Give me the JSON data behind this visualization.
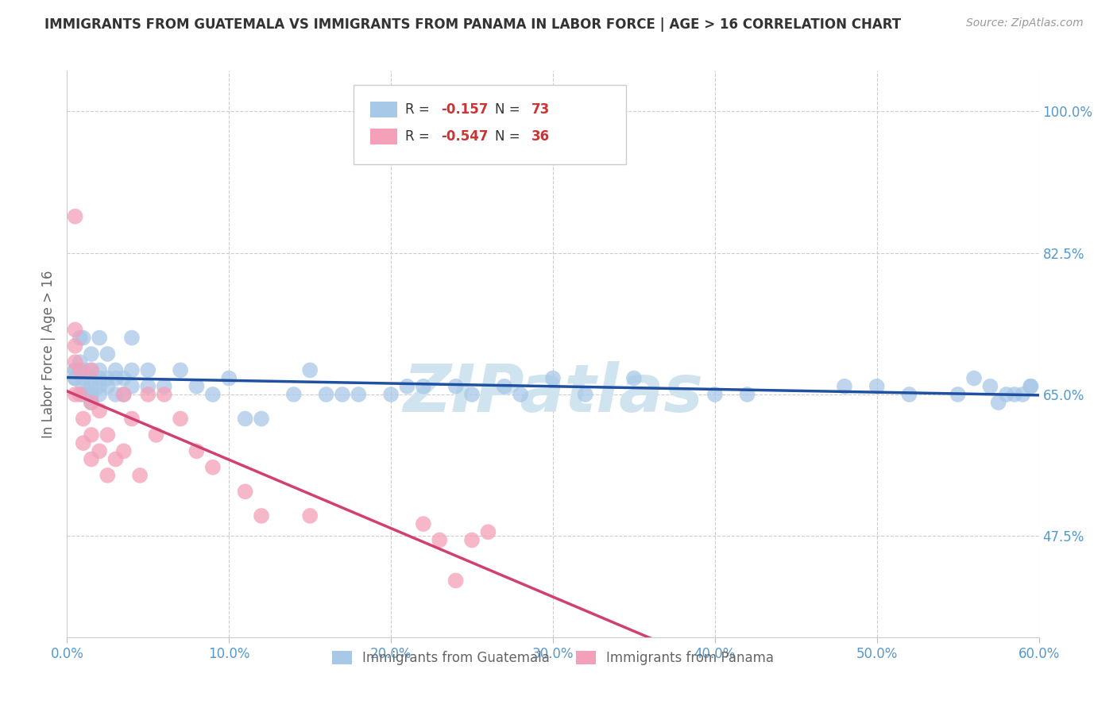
{
  "title": "IMMIGRANTS FROM GUATEMALA VS IMMIGRANTS FROM PANAMA IN LABOR FORCE | AGE > 16 CORRELATION CHART",
  "source": "Source: ZipAtlas.com",
  "xlabel_vals": [
    0,
    10,
    20,
    30,
    40,
    50,
    60
  ],
  "ylabel_vals": [
    47.5,
    65.0,
    82.5,
    100.0
  ],
  "xlim": [
    0,
    60
  ],
  "ylim": [
    35,
    105
  ],
  "ylabel": "In Labor Force | Age > 16",
  "legend_label1": "Immigrants from Guatemala",
  "legend_label2": "Immigrants from Panama",
  "R1": "-0.157",
  "N1": "73",
  "R2": "-0.547",
  "N2": "36",
  "blue_color": "#a8c8e8",
  "pink_color": "#f4a0b8",
  "blue_line_color": "#2050a0",
  "pink_line_color": "#d04070",
  "title_color": "#333333",
  "source_color": "#999999",
  "axis_label_color": "#5599cc",
  "watermark_color": "#d0e4f0",
  "grid_color": "#cccccc",
  "background_color": "#ffffff",
  "guatemala_x": [
    0.5,
    0.5,
    0.5,
    0.5,
    0.8,
    0.8,
    0.8,
    1.0,
    1.0,
    1.0,
    1.0,
    1.0,
    1.5,
    1.5,
    1.5,
    1.5,
    1.5,
    1.5,
    1.5,
    2.0,
    2.0,
    2.0,
    2.0,
    2.0,
    2.5,
    2.5,
    2.5,
    3.0,
    3.0,
    3.0,
    3.5,
    3.5,
    4.0,
    4.0,
    4.0,
    5.0,
    5.0,
    6.0,
    7.0,
    8.0,
    9.0,
    10.0,
    11.0,
    12.0,
    14.0,
    15.0,
    16.0,
    17.0,
    18.0,
    20.0,
    21.0,
    22.0,
    24.0,
    25.0,
    27.0,
    28.0,
    30.0,
    32.0,
    35.0,
    40.0,
    42.0,
    48.0,
    50.0,
    52.0,
    55.0,
    56.0,
    57.0,
    58.0,
    59.0,
    59.5,
    59.5,
    58.5,
    57.5
  ],
  "guatemala_y": [
    67,
    67,
    68,
    68,
    68,
    69,
    72,
    65,
    66,
    67,
    68,
    72,
    64,
    65,
    65,
    66,
    67,
    68,
    70,
    65,
    66,
    67,
    68,
    72,
    66,
    67,
    70,
    65,
    67,
    68,
    65,
    67,
    66,
    68,
    72,
    66,
    68,
    66,
    68,
    66,
    65,
    67,
    62,
    62,
    65,
    68,
    65,
    65,
    65,
    65,
    66,
    66,
    66,
    65,
    66,
    65,
    67,
    65,
    67,
    65,
    65,
    66,
    66,
    65,
    65,
    67,
    66,
    65,
    65,
    66,
    66,
    65,
    64
  ],
  "panama_x": [
    0.5,
    0.5,
    0.5,
    0.5,
    0.5,
    0.8,
    0.8,
    1.0,
    1.0,
    1.5,
    1.5,
    1.5,
    1.5,
    2.0,
    2.0,
    2.5,
    2.5,
    3.0,
    3.5,
    3.5,
    4.0,
    4.5,
    5.0,
    5.5,
    6.0,
    7.0,
    8.0,
    9.0,
    11.0,
    12.0,
    15.0,
    22.0,
    23.0,
    24.0,
    25.0,
    26.0
  ],
  "panama_y": [
    87,
    73,
    71,
    69,
    65,
    68,
    65,
    62,
    59,
    68,
    64,
    60,
    57,
    63,
    58,
    60,
    55,
    57,
    65,
    58,
    62,
    55,
    65,
    60,
    65,
    62,
    58,
    56,
    53,
    50,
    50,
    49,
    47,
    42,
    47,
    48
  ]
}
